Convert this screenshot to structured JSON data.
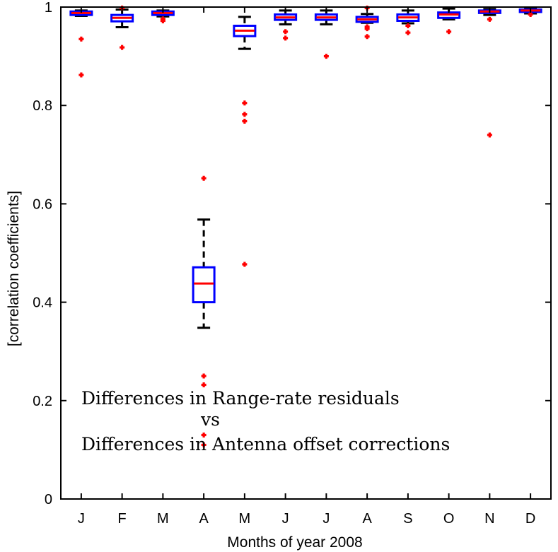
{
  "chart_data": {
    "type": "boxplot",
    "title": "",
    "xlabel": "Months of year 2008",
    "ylabel": "[correlation coefficients]",
    "ylim": [
      0,
      1
    ],
    "yticks": [
      0,
      0.2,
      0.4,
      0.6,
      0.8,
      1
    ],
    "ytick_labels": [
      "0",
      "0.2",
      "0.4",
      "0.6",
      "0.8",
      "1"
    ],
    "categories": [
      "J",
      "F",
      "M",
      "A",
      "M",
      "J",
      "J",
      "A",
      "S",
      "O",
      "N",
      "D"
    ],
    "annotation": [
      "Differences in Range-rate residuals",
      "vs",
      "Differences in Antenna offset corrections"
    ],
    "colors": {
      "box": "#0000ff",
      "median": "#ff0000",
      "whisker": "#000000",
      "outlier": "#ff0000"
    },
    "boxes": [
      {
        "month": "J",
        "whisker_low": 0.982,
        "q1": 0.984,
        "median": 0.988,
        "q3": 0.991,
        "whisker_high": 0.993,
        "outliers": [
          0.935,
          0.862
        ]
      },
      {
        "month": "F",
        "whisker_low": 0.959,
        "q1": 0.971,
        "median": 0.978,
        "q3": 0.984,
        "whisker_high": 0.995,
        "outliers": [
          0.918,
          0.998
        ]
      },
      {
        "month": "M",
        "whisker_low": 0.981,
        "q1": 0.984,
        "median": 0.988,
        "q3": 0.991,
        "whisker_high": 0.993,
        "outliers": [
          0.976,
          0.972
        ]
      },
      {
        "month": "A",
        "whisker_low": 0.348,
        "q1": 0.4,
        "median": 0.438,
        "q3": 0.471,
        "whisker_high": 0.568,
        "outliers": [
          0.652,
          0.25,
          0.232,
          0.13,
          0.11
        ]
      },
      {
        "month": "M",
        "whisker_low": 0.915,
        "q1": 0.941,
        "median": 0.952,
        "q3": 0.962,
        "whisker_high": 0.98,
        "outliers": [
          0.805,
          0.782,
          0.768,
          0.477
        ]
      },
      {
        "month": "J",
        "whisker_low": 0.965,
        "q1": 0.974,
        "median": 0.979,
        "q3": 0.985,
        "whisker_high": 0.993,
        "outliers": [
          0.95,
          0.937
        ]
      },
      {
        "month": "J",
        "whisker_low": 0.965,
        "q1": 0.974,
        "median": 0.979,
        "q3": 0.985,
        "whisker_high": 0.993,
        "outliers": [
          0.9
        ]
      },
      {
        "month": "A",
        "whisker_low": 0.968,
        "q1": 0.97,
        "median": 0.975,
        "q3": 0.98,
        "whisker_high": 0.986,
        "outliers": [
          0.998,
          0.96,
          0.956,
          0.94
        ]
      },
      {
        "month": "S",
        "whisker_low": 0.967,
        "q1": 0.972,
        "median": 0.979,
        "q3": 0.985,
        "whisker_high": 0.993,
        "outliers": [
          0.962,
          0.948
        ]
      },
      {
        "month": "O",
        "whisker_low": 0.975,
        "q1": 0.978,
        "median": 0.985,
        "q3": 0.989,
        "whisker_high": 0.997,
        "outliers": [
          0.95
        ]
      },
      {
        "month": "N",
        "whisker_low": 0.984,
        "q1": 0.988,
        "median": 0.991,
        "q3": 0.993,
        "whisker_high": 0.996,
        "outliers": [
          0.975,
          0.74
        ]
      },
      {
        "month": "D",
        "whisker_low": 0.987,
        "q1": 0.99,
        "median": 0.993,
        "q3": 0.995,
        "whisker_high": 0.997,
        "outliers": [
          0.985
        ]
      }
    ]
  }
}
